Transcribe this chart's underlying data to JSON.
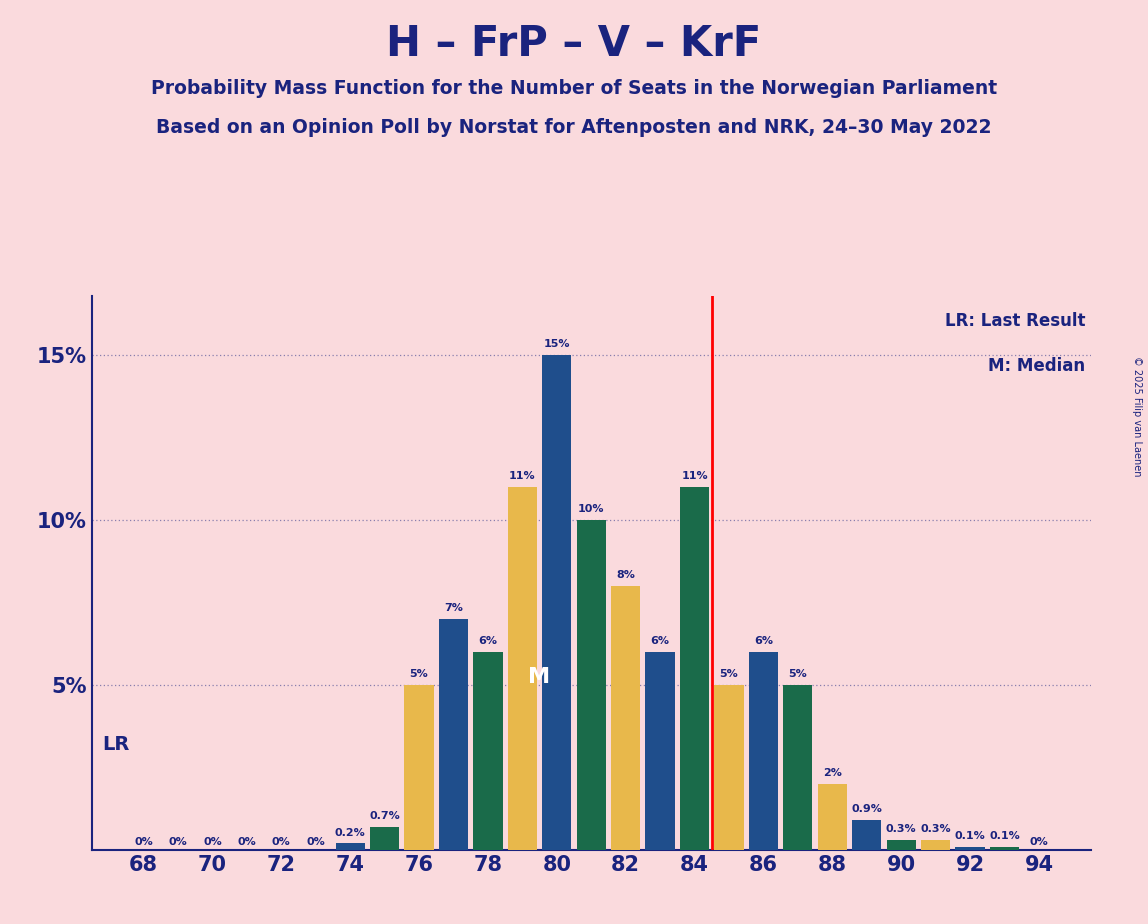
{
  "title": "H – FrP – V – KrF",
  "subtitle1": "Probability Mass Function for the Number of Seats in the Norwegian Parliament",
  "subtitle2": "Based on an Opinion Poll by Norstat for Aftenposten and NRK, 24–30 May 2022",
  "copyright": "© 2025 Filip van Laenen",
  "seats": [
    68,
    69,
    70,
    71,
    72,
    73,
    74,
    75,
    76,
    77,
    78,
    79,
    80,
    81,
    82,
    83,
    84,
    85,
    86,
    87,
    88,
    89,
    90,
    91,
    92,
    93,
    94
  ],
  "probabilities": [
    0.0,
    0.0,
    0.0,
    0.0,
    0.0,
    0.0,
    0.002,
    0.007,
    0.05,
    0.07,
    0.06,
    0.11,
    0.15,
    0.1,
    0.08,
    0.06,
    0.11,
    0.05,
    0.06,
    0.05,
    0.02,
    0.009,
    0.003,
    0.003,
    0.001,
    0.001,
    0.0
  ],
  "bar_labels": [
    "0%",
    "0%",
    "0%",
    "0%",
    "0%",
    "0%",
    "0.2%",
    "0.7%",
    "5%",
    "7%",
    "6%",
    "11%",
    "15%",
    "10%",
    "8%",
    "6%",
    "11%",
    "5%",
    "6%",
    "5%",
    "2%",
    "0.9%",
    "0.3%",
    "0.3%",
    "0.1%",
    "0.1%",
    "0%"
  ],
  "blue": "#1f4e8c",
  "dark_green": "#1a6b4a",
  "yellow": "#e8b84b",
  "last_result": 85,
  "median": 80,
  "lr_label": "LR: Last Result",
  "m_label": "M: Median",
  "lr_marker_label": "LR",
  "m_marker_label": "M",
  "background_color": "#fadadd",
  "text_color": "#1a237e",
  "grid_color": "#1a237e",
  "ylim": [
    0,
    0.168
  ],
  "yticks": [
    0.0,
    0.05,
    0.1,
    0.15
  ],
  "ytick_labels": [
    "",
    "5%",
    "10%",
    "15%"
  ],
  "xtick_positions": [
    68,
    70,
    72,
    74,
    76,
    78,
    80,
    82,
    84,
    86,
    88,
    90,
    92,
    94
  ]
}
